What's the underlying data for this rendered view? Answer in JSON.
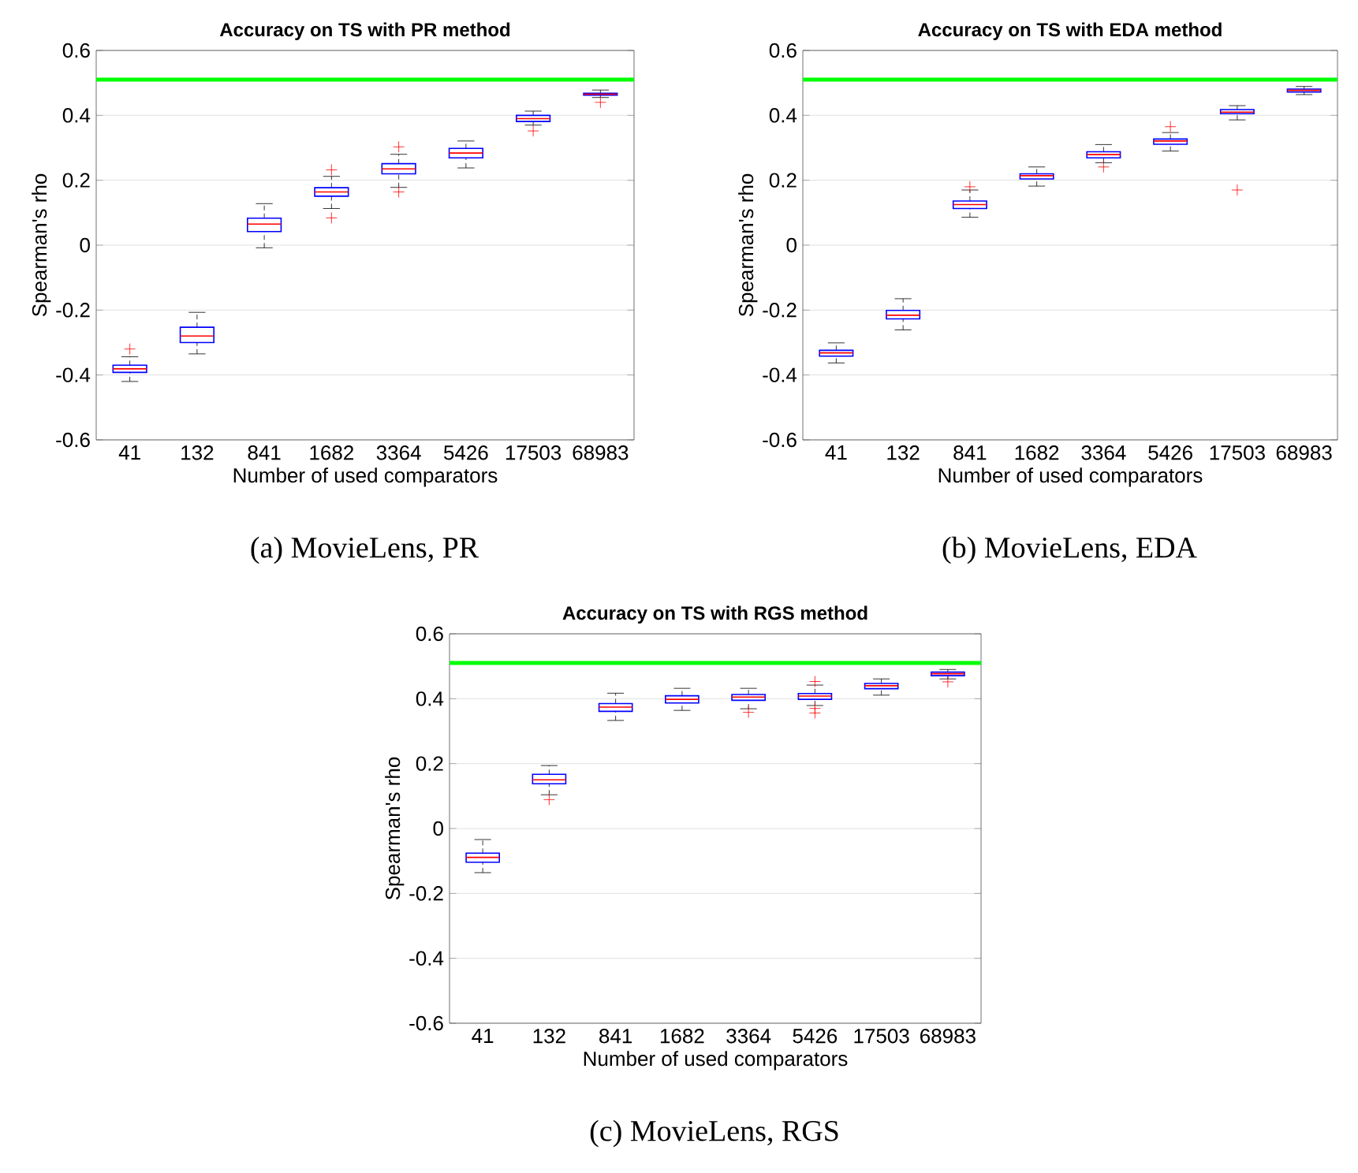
{
  "chart_data": [
    {
      "type": "box",
      "title": "Accuracy on TS with PR method",
      "xlabel": "Number of used comparators",
      "ylabel": "Spearman's rho",
      "categories": [
        "41",
        "132",
        "841",
        "1682",
        "3364",
        "5426",
        "17503",
        "68983"
      ],
      "ylim": [
        -0.6,
        0.6
      ],
      "yticks": [
        -0.6,
        -0.4,
        -0.2,
        0,
        0.2,
        0.4,
        0.6
      ],
      "grid": "y",
      "series": [
        {
          "color": "#0000ff",
          "boxes": [
            {
              "low": -0.42,
              "q1": -0.392,
              "median": -0.381,
              "q3": -0.37,
              "high": -0.344,
              "outliers": [
                -0.32
              ]
            },
            {
              "low": -0.335,
              "q1": -0.3,
              "median": -0.28,
              "q3": -0.253,
              "high": -0.207
            },
            {
              "low": -0.008,
              "q1": 0.042,
              "median": 0.065,
              "q3": 0.083,
              "high": 0.128
            },
            {
              "low": 0.113,
              "q1": 0.151,
              "median": 0.164,
              "q3": 0.177,
              "high": 0.212,
              "outliers": [
                0.232,
                0.084
              ]
            },
            {
              "low": 0.178,
              "q1": 0.22,
              "median": 0.235,
              "q3": 0.251,
              "high": 0.28,
              "outliers": [
                0.303,
                0.164
              ]
            },
            {
              "low": 0.238,
              "q1": 0.269,
              "median": 0.284,
              "q3": 0.298,
              "high": 0.321
            },
            {
              "low": 0.37,
              "q1": 0.381,
              "median": 0.39,
              "q3": 0.4,
              "high": 0.413,
              "outliers": [
                0.352
              ]
            },
            {
              "low": 0.455,
              "q1": 0.462,
              "median": 0.465,
              "q3": 0.468,
              "high": 0.478,
              "outliers": [
                0.44
              ]
            }
          ]
        }
      ],
      "ref_lines": [
        {
          "axis": "y",
          "value": 0.51,
          "color": "#00ff00"
        }
      ],
      "annotations": [
        "(a) MovieLens, PR"
      ]
    },
    {
      "type": "box",
      "title": "Accuracy on TS with EDA method",
      "xlabel": "Number of used comparators",
      "ylabel": "Spearman's rho",
      "categories": [
        "41",
        "132",
        "841",
        "1682",
        "3364",
        "5426",
        "17503",
        "68983"
      ],
      "ylim": [
        -0.6,
        0.6
      ],
      "yticks": [
        -0.6,
        -0.4,
        -0.2,
        0,
        0.2,
        0.4,
        0.6
      ],
      "grid": "y",
      "series": [
        {
          "color": "#0000ff",
          "boxes": [
            {
              "low": -0.363,
              "q1": -0.342,
              "median": -0.332,
              "q3": -0.324,
              "high": -0.301
            },
            {
              "low": -0.261,
              "q1": -0.227,
              "median": -0.216,
              "q3": -0.201,
              "high": -0.165
            },
            {
              "low": 0.086,
              "q1": 0.113,
              "median": 0.125,
              "q3": 0.136,
              "high": 0.17,
              "outliers": [
                0.18
              ]
            },
            {
              "low": 0.182,
              "q1": 0.204,
              "median": 0.214,
              "q3": 0.22,
              "high": 0.241
            },
            {
              "low": 0.254,
              "q1": 0.269,
              "median": 0.279,
              "q3": 0.288,
              "high": 0.31,
              "outliers": [
                0.241
              ]
            },
            {
              "low": 0.29,
              "q1": 0.311,
              "median": 0.321,
              "q3": 0.327,
              "high": 0.347,
              "outliers": [
                0.365
              ]
            },
            {
              "low": 0.386,
              "q1": 0.405,
              "median": 0.41,
              "q3": 0.418,
              "high": 0.43,
              "outliers": [
                0.17
              ]
            },
            {
              "low": 0.464,
              "q1": 0.472,
              "median": 0.477,
              "q3": 0.481,
              "high": 0.489
            }
          ]
        }
      ],
      "ref_lines": [
        {
          "axis": "y",
          "value": 0.51,
          "color": "#00ff00"
        }
      ],
      "annotations": [
        "(b) MovieLens, EDA"
      ]
    },
    {
      "type": "box",
      "title": "Accuracy on TS with RGS method",
      "xlabel": "Number of used comparators",
      "ylabel": "Spearman's rho",
      "categories": [
        "41",
        "132",
        "841",
        "1682",
        "3364",
        "5426",
        "17503",
        "68983"
      ],
      "ylim": [
        -0.6,
        0.6
      ],
      "yticks": [
        -0.6,
        -0.4,
        -0.2,
        0,
        0.2,
        0.4,
        0.6
      ],
      "grid": "y",
      "series": [
        {
          "color": "#0000ff",
          "boxes": [
            {
              "low": -0.136,
              "q1": -0.104,
              "median": -0.089,
              "q3": -0.076,
              "high": -0.034
            },
            {
              "low": 0.104,
              "q1": 0.138,
              "median": 0.15,
              "q3": 0.167,
              "high": 0.194,
              "outliers": [
                0.089
              ]
            },
            {
              "low": 0.333,
              "q1": 0.361,
              "median": 0.374,
              "q3": 0.385,
              "high": 0.417
            },
            {
              "low": 0.364,
              "q1": 0.387,
              "median": 0.398,
              "q3": 0.409,
              "high": 0.432
            },
            {
              "low": 0.369,
              "q1": 0.395,
              "median": 0.405,
              "q3": 0.413,
              "high": 0.432,
              "outliers": [
                0.358
              ]
            },
            {
              "low": 0.379,
              "q1": 0.398,
              "median": 0.408,
              "q3": 0.416,
              "high": 0.442,
              "outliers": [
                0.453,
                0.37,
                0.356
              ]
            },
            {
              "low": 0.411,
              "q1": 0.431,
              "median": 0.44,
              "q3": 0.447,
              "high": 0.461
            },
            {
              "low": 0.461,
              "q1": 0.471,
              "median": 0.477,
              "q3": 0.482,
              "high": 0.49,
              "outliers": [
                0.452
              ]
            }
          ]
        }
      ],
      "ref_lines": [
        {
          "axis": "y",
          "value": 0.51,
          "color": "#00ff00"
        }
      ],
      "annotations": [
        "(c) MovieLens, RGS"
      ]
    }
  ]
}
